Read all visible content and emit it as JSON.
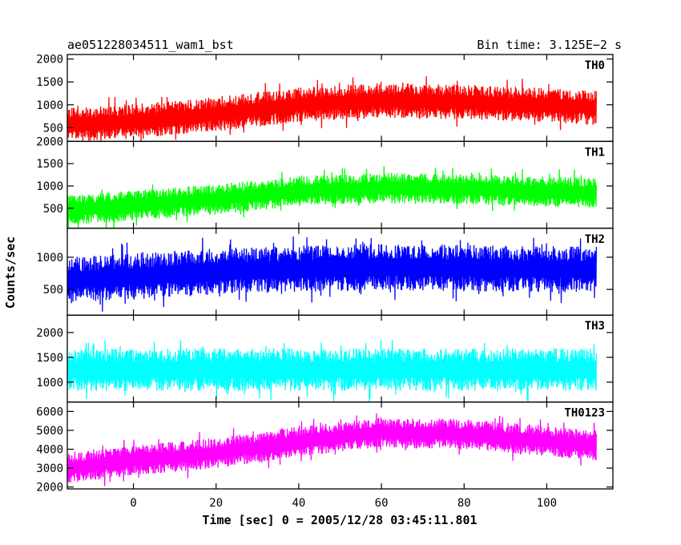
{
  "chart_data": {
    "type": "line",
    "title_left": "ae051228034511_wam1_bst",
    "title_right": "Bin time: 3.125E−2 s",
    "xlabel": "Time [sec] 0 = 2005/12/28 03:45:11.801",
    "ylabel": "Counts/sec",
    "xlim": [
      -16,
      116
    ],
    "x_ticks": [
      0,
      20,
      40,
      60,
      80,
      100
    ],
    "x_tick_labels": [
      "0",
      "20",
      "40",
      "60",
      "80",
      "100"
    ],
    "x_range_data": [
      -16,
      112
    ],
    "grid": false,
    "panels": [
      {
        "name": "TH0",
        "color": "#ff0000",
        "ylim": [
          200,
          2100
        ],
        "y_ticks": [
          500,
          1000,
          1500,
          2000
        ],
        "y_tick_labels": [
          "500",
          "1000",
          "1500",
          "2000"
        ],
        "trend_x": [
          -16,
          0,
          20,
          40,
          60,
          80,
          112
        ],
        "trend_y": [
          560,
          640,
          800,
          1000,
          1100,
          1060,
          940
        ],
        "noise_half_range": 380
      },
      {
        "name": "TH1",
        "color": "#00ff00",
        "ylim": [
          50,
          2000
        ],
        "y_ticks": [
          500,
          1000,
          1500,
          2000
        ],
        "y_tick_labels": [
          "500",
          "1000",
          "1500",
          "2000"
        ],
        "trend_x": [
          -16,
          0,
          20,
          40,
          60,
          80,
          112
        ],
        "trend_y": [
          450,
          560,
          700,
          880,
          950,
          930,
          840
        ],
        "noise_half_range": 340
      },
      {
        "name": "TH2",
        "color": "#0000ff",
        "ylim": [
          100,
          1450
        ],
        "y_ticks": [
          500,
          1000
        ],
        "y_tick_labels": [
          "500",
          "1000"
        ],
        "trend_x": [
          -16,
          0,
          20,
          40,
          60,
          80,
          112
        ],
        "trend_y": [
          640,
          700,
          780,
          820,
          850,
          830,
          810
        ],
        "noise_half_range": 360
      },
      {
        "name": "TH3",
        "color": "#00ffff",
        "ylim": [
          600,
          2350
        ],
        "y_ticks": [
          1000,
          1500,
          2000
        ],
        "y_tick_labels": [
          "1000",
          "1500",
          "2000"
        ],
        "trend_x": [
          -16,
          112
        ],
        "trend_y": [
          1250,
          1250
        ],
        "noise_half_range": 430
      },
      {
        "name": "TH0123",
        "color": "#ff00ff",
        "ylim": [
          1900,
          6500
        ],
        "y_ticks": [
          2000,
          3000,
          4000,
          5000,
          6000
        ],
        "y_tick_labels": [
          "2000",
          "3000",
          "4000",
          "5000",
          "6000"
        ],
        "trend_x": [
          -16,
          0,
          20,
          40,
          60,
          80,
          112
        ],
        "trend_y": [
          3000,
          3400,
          3800,
          4400,
          4900,
          4800,
          4200
        ],
        "noise_half_range": 800
      }
    ]
  }
}
